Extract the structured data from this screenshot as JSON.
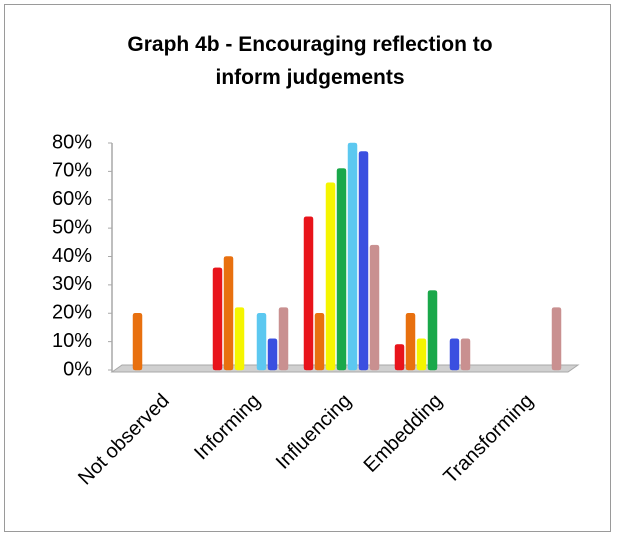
{
  "chart_data": {
    "type": "bar",
    "title": "Graph 4b - Encouraging reflection to inform judgements",
    "categories": [
      "Not observed",
      "Informing",
      "Influencing",
      "Embedding",
      "Transforming"
    ],
    "series": [
      {
        "color": "#e8141b",
        "values": [
          0,
          36,
          54,
          9,
          0
        ]
      },
      {
        "color": "#e8700f",
        "values": [
          20,
          40,
          20,
          20,
          0
        ]
      },
      {
        "color": "#f5f500",
        "values": [
          0,
          22,
          66,
          11,
          0
        ]
      },
      {
        "color": "#1aa84a",
        "values": [
          0,
          0,
          71,
          28,
          0
        ]
      },
      {
        "color": "#5cc8f0",
        "values": [
          0,
          20,
          80,
          0,
          0
        ]
      },
      {
        "color": "#3a4fe0",
        "values": [
          0,
          11,
          77,
          11,
          0
        ]
      },
      {
        "color": "#c99090",
        "values": [
          0,
          22,
          44,
          11,
          22
        ]
      }
    ],
    "ylim": [
      0,
      80
    ],
    "yticks": [
      {
        "value": 0,
        "label": "0%"
      },
      {
        "value": 10,
        "label": "10%"
      },
      {
        "value": 20,
        "label": "20%"
      },
      {
        "value": 30,
        "label": "30%"
      },
      {
        "value": 40,
        "label": "40%"
      },
      {
        "value": 50,
        "label": "50%"
      },
      {
        "value": 60,
        "label": "60%"
      },
      {
        "value": 70,
        "label": "70%"
      },
      {
        "value": 80,
        "label": "80%"
      }
    ]
  }
}
